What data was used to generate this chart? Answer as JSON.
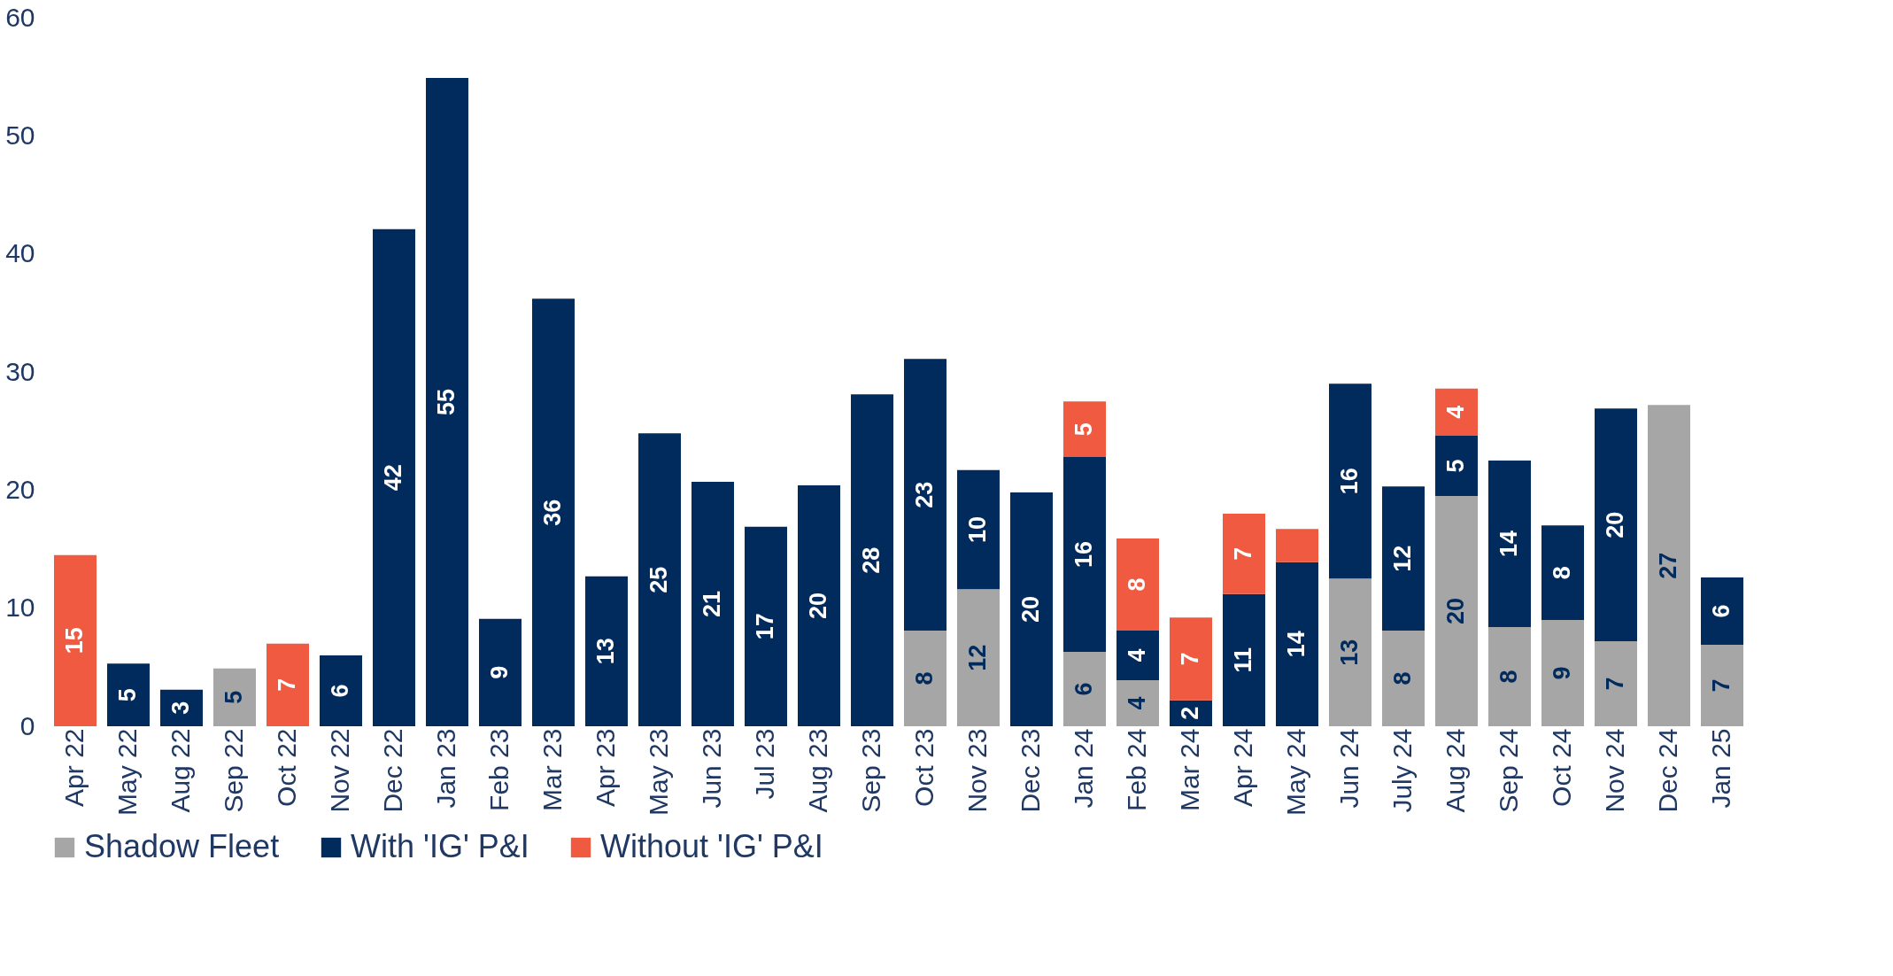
{
  "chart_data": {
    "type": "bar",
    "stacked": true,
    "categories": [
      "Apr 22",
      "May 22",
      "Aug 22",
      "Sep 22",
      "Oct 22",
      "Nov 22",
      "Dec 22",
      "Jan 23",
      "Feb 23",
      "Mar 23",
      "Apr 23",
      "May 23",
      "Jun 23",
      "Jul 23",
      "Aug 23",
      "Sep 23",
      "Oct 23",
      "Nov 23",
      "Dec 23",
      "Jan 24",
      "Feb 24",
      "Mar 24",
      "Apr 24",
      "May 24",
      "Jun 24",
      "July 24",
      "Aug 24",
      "Sep 24",
      "Oct 24",
      "Nov 24",
      "Dec 24",
      "Jan 25"
    ],
    "series": [
      {
        "name": "Shadow Fleet",
        "color": "#a6a6a6",
        "values": [
          null,
          null,
          null,
          4.9,
          null,
          null,
          null,
          null,
          null,
          null,
          null,
          null,
          null,
          null,
          null,
          null,
          8.1,
          11.6,
          null,
          6.3,
          3.9,
          null,
          null,
          null,
          12.5,
          8.1,
          19.5,
          8.4,
          9.0,
          7.2,
          27.2,
          6.9
        ],
        "value_labels": [
          null,
          null,
          null,
          "5",
          null,
          null,
          null,
          null,
          null,
          null,
          null,
          null,
          null,
          null,
          null,
          null,
          "8",
          "12",
          null,
          "6",
          "4",
          null,
          null,
          null,
          "13",
          "8",
          "20",
          "8",
          "9",
          "7",
          "27",
          "7"
        ]
      },
      {
        "name": "With 'IG' P&I",
        "color": "#002b5c",
        "values": [
          null,
          5.3,
          3.1,
          null,
          null,
          6.0,
          42.1,
          54.9,
          9.1,
          36.2,
          12.7,
          24.8,
          20.7,
          16.9,
          20.4,
          28.1,
          23.0,
          10.1,
          19.8,
          16.5,
          4.2,
          2.2,
          11.2,
          13.9,
          16.5,
          12.2,
          5.1,
          14.1,
          8.0,
          19.7,
          null,
          5.7
        ],
        "value_labels": [
          null,
          "5",
          "3",
          null,
          null,
          "6",
          "42",
          "55",
          "9",
          "36",
          "13",
          "25",
          "21",
          "17",
          "20",
          "28",
          "23",
          "10",
          "20",
          "16",
          "4",
          "2",
          "11",
          "14",
          "16",
          "12",
          "5",
          "14",
          "8",
          "20",
          null,
          "6"
        ]
      },
      {
        "name": "Without 'IG' P&I",
        "color": "#f05a40",
        "values": [
          14.5,
          null,
          null,
          null,
          7.0,
          null,
          null,
          null,
          null,
          null,
          null,
          null,
          null,
          null,
          null,
          null,
          null,
          null,
          null,
          4.7,
          7.8,
          7.0,
          6.8,
          2.8,
          null,
          null,
          4.0,
          null,
          null,
          null,
          null,
          null
        ],
        "value_labels": [
          "15",
          null,
          null,
          null,
          "7",
          null,
          null,
          null,
          null,
          null,
          null,
          null,
          null,
          null,
          null,
          null,
          null,
          null,
          null,
          "5",
          "8",
          "7",
          "7",
          null,
          null,
          null,
          "4",
          null,
          null,
          null,
          null,
          null
        ]
      }
    ],
    "ylim": [
      0,
      60
    ],
    "yticks": [
      0,
      10,
      20,
      30,
      40,
      50,
      60
    ],
    "grid": false,
    "legend": "bottom"
  }
}
